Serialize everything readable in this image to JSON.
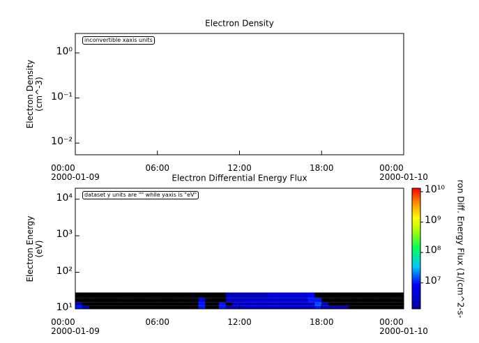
{
  "chart_data": [
    {
      "type": "line",
      "title": "Electron Density",
      "ylabel": "Electron Density\n(cm^-3)",
      "annotation": "inconvertible xaxis units",
      "yscale": "log",
      "xlim": [
        0,
        24
      ],
      "xticks": [
        {
          "value": 0,
          "label": "00:00\n2000-01-09"
        },
        {
          "value": 6,
          "label": "06:00"
        },
        {
          "value": 12,
          "label": "12:00"
        },
        {
          "value": 18,
          "label": "18:00"
        },
        {
          "value": 24,
          "label": "00:00\n2000-01-10"
        }
      ],
      "ylim": [
        0.0055,
        2.7
      ],
      "yticks": [
        {
          "value": 0.01,
          "label": "10⁻²"
        },
        {
          "value": 0.1,
          "label": "10⁻¹"
        },
        {
          "value": 1,
          "label": "10⁰"
        }
      ]
    },
    {
      "type": "heatmap",
      "title": "Electron Differential Energy Flux",
      "ylabel": "Electron Energy\n(eV)",
      "annotation": "dataset y units are \"\" while yaxis is \"eV\"",
      "yscale": "log",
      "zscale": "log",
      "colorbar_label": "ron Diff. Energy Flux (1/(cm^2-s-",
      "below_color": "#000000",
      "xlim": [
        0,
        24
      ],
      "xticks": [
        {
          "value": 0,
          "label": "00:00\n2000-01-09"
        },
        {
          "value": 6,
          "label": "06:00"
        },
        {
          "value": 12,
          "label": "12:00"
        },
        {
          "value": 18,
          "label": "18:00"
        },
        {
          "value": 24,
          "label": "00:00\n2000-01-10"
        }
      ],
      "ylim": [
        10,
        20000
      ],
      "yticks": [
        {
          "value": 10,
          "label": "10¹"
        },
        {
          "value": 100,
          "label": "10²"
        },
        {
          "value": 1000,
          "label": "10³"
        },
        {
          "value": 10000,
          "label": "10⁴"
        }
      ],
      "zlim": [
        1400000,
        13000000000
      ],
      "zticks": [
        {
          "value": 10000000,
          "label": "10⁷"
        },
        {
          "value": 100000000,
          "label": "10⁸"
        },
        {
          "value": 1000000000,
          "label": "10⁹"
        },
        {
          "value": 10000000000,
          "label": "10¹⁰"
        }
      ],
      "x_bins": [
        0,
        0.5,
        1,
        1.5,
        2,
        2.5,
        3,
        3.5,
        4,
        4.5,
        5,
        5.5,
        6,
        6.5,
        7,
        7.5,
        8,
        8.5,
        9,
        9.5,
        10,
        10.5,
        11,
        11.5,
        12,
        12.5,
        13,
        13.5,
        14,
        14.5,
        15,
        15.5,
        16,
        16.5,
        17,
        17.5,
        18,
        18.5,
        19,
        19.5,
        20,
        20.5,
        21,
        21.5,
        22,
        22.5,
        23,
        23.5,
        24
      ],
      "y_bins": [
        10,
        12,
        15,
        20,
        28
      ],
      "z": [
        [
          10000000,
          3000000,
          100000,
          100000,
          100000,
          100000,
          100000,
          100000,
          100000,
          100000,
          100000,
          100000,
          100000,
          100000,
          100000,
          100000,
          100000,
          100000,
          10000000,
          100000,
          100000,
          10000000,
          3000000,
          3000000,
          3000000,
          3000000,
          3000000,
          3000000,
          3000000,
          3000000,
          3000000,
          3000000,
          3000000,
          3000000,
          3000000,
          10000000,
          3000000,
          3000000,
          3000000,
          3000000,
          100000,
          100000,
          100000,
          100000,
          100000,
          100000,
          100000,
          100000
        ],
        [
          3000000,
          100000,
          100000,
          100000,
          100000,
          100000,
          100000,
          100000,
          100000,
          100000,
          100000,
          100000,
          100000,
          100000,
          100000,
          100000,
          100000,
          100000,
          10000000,
          100000,
          100000,
          10000000,
          100000,
          3000000,
          3000000,
          3000000,
          3000000,
          3000000,
          3000000,
          3000000,
          3000000,
          3000000,
          3000000,
          3000000,
          3000000,
          15000000,
          3000000,
          100000,
          100000,
          100000,
          100000,
          100000,
          100000,
          100000,
          100000,
          100000,
          100000,
          100000
        ],
        [
          100000,
          100000,
          100000,
          100000,
          100000,
          100000,
          100000,
          100000,
          100000,
          100000,
          100000,
          100000,
          100000,
          100000,
          100000,
          100000,
          100000,
          100000,
          5000000,
          100000,
          100000,
          100000,
          3000000,
          3000000,
          3000000,
          3000000,
          3000000,
          3000000,
          3000000,
          3000000,
          3000000,
          3000000,
          3000000,
          3000000,
          10000000,
          10000000,
          100000,
          100000,
          100000,
          100000,
          100000,
          100000,
          100000,
          100000,
          100000,
          100000,
          100000,
          100000
        ],
        [
          100000,
          100000,
          100000,
          100000,
          100000,
          100000,
          100000,
          100000,
          100000,
          100000,
          100000,
          100000,
          100000,
          100000,
          100000,
          100000,
          100000,
          100000,
          100000,
          100000,
          100000,
          100000,
          2000000,
          2000000,
          2000000,
          2000000,
          2000000,
          2000000,
          4000000,
          4000000,
          4000000,
          4000000,
          4000000,
          4000000,
          8000000,
          100000,
          100000,
          100000,
          100000,
          100000,
          100000,
          100000,
          100000,
          100000,
          100000,
          100000,
          100000,
          100000
        ]
      ]
    }
  ]
}
